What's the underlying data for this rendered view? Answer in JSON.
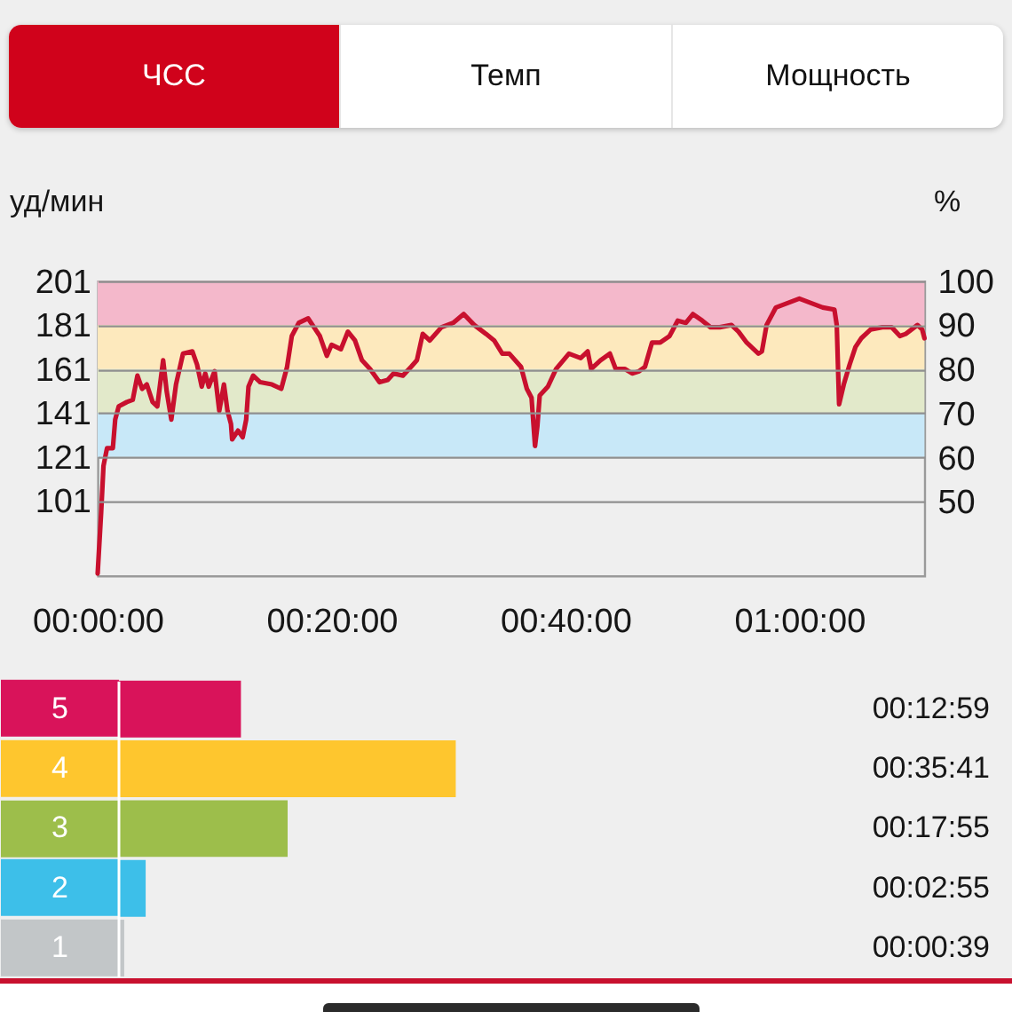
{
  "chart_data": [
    {
      "type": "line",
      "annotations": [
        "ЧСС",
        "Темп",
        "Мощность"
      ],
      "ylabel": "уд/мин",
      "y2label": "%",
      "x": [
        0,
        0.3,
        0.5,
        0.8,
        1.3,
        1.5,
        1.8,
        2.5,
        3.0,
        3.4,
        3.8,
        4.2,
        4.7,
        5.1,
        5.6,
        5.9,
        6.3,
        6.7,
        7.3,
        8.1,
        8.5,
        8.9,
        9.2,
        9.5,
        10.0,
        10.4,
        10.8,
        11.1,
        11.4,
        11.5,
        12.0,
        12.4,
        12.7,
        12.9,
        13.3,
        13.9,
        14.9,
        15.7,
        16.2,
        16.6,
        17.2,
        18.0,
        18.5,
        19.0,
        19.6,
        20.0,
        20.8,
        21.4,
        22.0,
        22.6,
        23.3,
        24.1,
        24.8,
        25.3,
        26.1,
        26.8,
        27.3,
        27.8,
        28.4,
        29.4,
        30.4,
        31.3,
        32.2,
        33.2,
        33.9,
        34.6,
        35.2,
        36.2,
        36.7,
        37.1,
        37.4,
        37.6,
        37.8,
        38.5,
        39.2,
        40.3,
        41.3,
        41.9,
        42.2,
        43.0,
        43.8,
        44.3,
        45.1,
        45.7,
        46.3,
        46.8,
        47.4,
        48.1,
        48.9,
        49.6,
        50.3,
        50.9,
        51.7,
        52.4,
        53.2,
        54.2,
        54.8,
        55.5,
        56.1,
        56.5,
        56.8,
        57.2,
        58.0,
        59.0,
        60.0,
        61.0,
        62.0,
        63.0,
        63.2,
        63.4,
        63.8,
        64.3,
        64.8,
        65.3,
        66.1,
        67.1,
        67.9,
        68.6,
        69.1,
        69.6,
        70.1,
        70.5,
        70.7
      ],
      "series": [
        {
          "color": "#c8102e",
          "values": [
            68,
            96,
            117,
            125,
            125,
            138,
            144,
            146,
            147,
            158,
            152,
            154,
            146,
            144,
            165,
            151,
            138,
            154,
            168,
            169,
            163,
            153,
            159,
            153,
            160,
            142,
            154,
            142,
            136,
            129,
            133,
            130,
            138,
            153,
            158,
            155,
            154,
            152,
            162,
            176,
            182,
            184,
            180,
            176,
            167,
            172,
            170,
            178,
            174,
            165,
            161,
            155,
            156,
            159,
            158,
            162,
            165,
            177,
            174,
            180,
            182,
            186,
            181,
            177,
            174,
            168,
            168,
            162,
            152,
            148,
            126,
            135,
            149,
            153,
            161,
            168,
            166,
            169,
            161,
            165,
            168,
            161,
            161,
            159,
            160,
            162,
            173,
            173,
            176,
            183,
            182,
            186,
            183,
            180,
            180,
            181,
            178,
            173,
            170,
            168,
            169,
            181,
            189,
            191,
            193,
            191,
            189,
            188,
            181,
            145,
            154,
            163,
            171,
            175,
            179,
            180,
            180,
            176,
            177,
            179,
            181,
            179,
            175
          ]
        }
      ],
      "xlim": [
        0,
        70.7
      ],
      "xticks": [
        {
          "value": 0,
          "label": "00:00:00"
        },
        {
          "value": 20,
          "label": "00:20:00"
        },
        {
          "value": 40,
          "label": "00:40:00"
        },
        {
          "value": 60,
          "label": "01:00:00"
        }
      ],
      "ylim": [
        67,
        201
      ],
      "yticks": [
        101,
        121,
        141,
        161,
        181,
        201
      ],
      "y2lim": [
        33.3,
        100
      ],
      "y2ticks": [
        50,
        60,
        70,
        80,
        90,
        100
      ],
      "grid": "y",
      "bands": [
        {
          "axis": "y",
          "from": 181,
          "to": 201,
          "color": "#f4b8cb"
        },
        {
          "axis": "y",
          "from": 161,
          "to": 181,
          "color": "#fde9bd"
        },
        {
          "axis": "y",
          "from": 141,
          "to": 161,
          "color": "#e2e9ca"
        },
        {
          "axis": "y",
          "from": 121,
          "to": 141,
          "color": "#c8e8f8"
        }
      ]
    },
    {
      "type": "bar",
      "orientation": "horizontal",
      "categories": [
        "5",
        "4",
        "3",
        "2",
        "1"
      ],
      "values": [
        779,
        2141,
        1075,
        175,
        39
      ],
      "colors": [
        "#d9135a",
        "#fec62e",
        "#9dbe4b",
        "#3dbfe9",
        "#c2c6c8"
      ],
      "value_labels": [
        "00:12:59",
        "00:35:41",
        "00:17:55",
        "00:02:55",
        "00:00:39"
      ]
    }
  ]
}
